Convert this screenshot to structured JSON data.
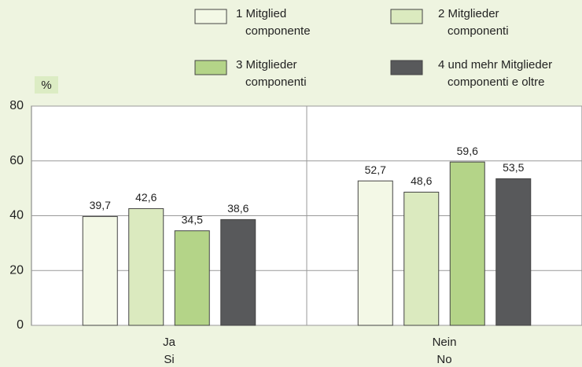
{
  "chart_data": {
    "type": "bar",
    "y_label": "%",
    "categories": [
      "Ja\nSi",
      "Nein\nNo"
    ],
    "series": [
      {
        "name": "1 Mitglied\ncomponente",
        "color": "#f3f8e6",
        "values": [
          39.7,
          52.7
        ],
        "value_labels": [
          "39,7",
          "52,7"
        ]
      },
      {
        "name": "2 Mitglieder\ncomponenti",
        "color": "#dbeabf",
        "values": [
          42.6,
          48.6
        ],
        "value_labels": [
          "42,6",
          "48,6"
        ]
      },
      {
        "name": "3 Mitglieder\ncomponenti",
        "color": "#b4d488",
        "values": [
          34.5,
          59.6
        ],
        "value_labels": [
          "34,5",
          "59,6"
        ]
      },
      {
        "name": "4 und mehr Mitglieder\ncomponenti e oltre",
        "color": "#58595b",
        "values": [
          38.6,
          53.5
        ],
        "value_labels": [
          "38,6",
          "53,5"
        ]
      }
    ],
    "ylim": [
      0,
      80
    ],
    "yticks": [
      0,
      20,
      40,
      60,
      80
    ],
    "grid": true
  }
}
